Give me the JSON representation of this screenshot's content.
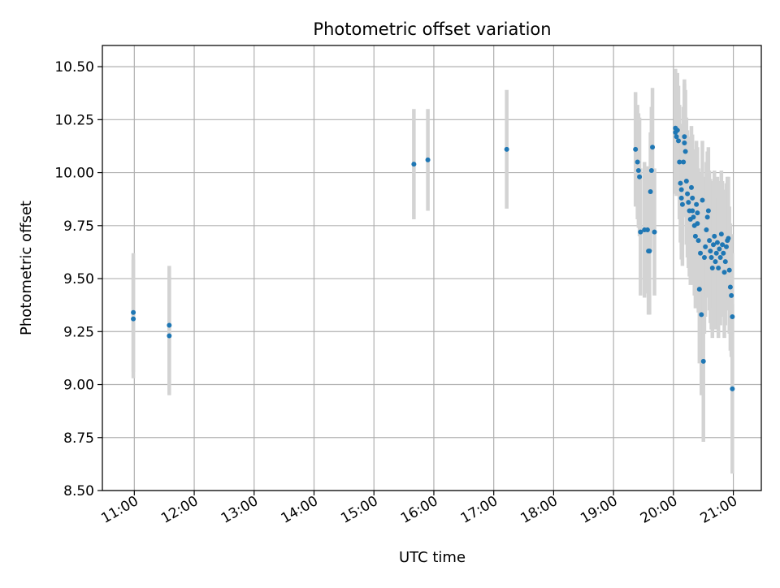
{
  "chart_data": {
    "type": "scatter",
    "title": "Photometric offset variation",
    "xlabel": "UTC time",
    "ylabel": "Photometric offset",
    "x_tick_labels": [
      "11:00",
      "12:00",
      "13:00",
      "14:00",
      "15:00",
      "16:00",
      "17:00",
      "18:00",
      "19:00",
      "20:00",
      "21:00"
    ],
    "y_tick_labels": [
      "8.50",
      "8.75",
      "9.00",
      "9.25",
      "9.50",
      "9.75",
      "10.00",
      "10.25",
      "10.50"
    ],
    "xlim": [
      "10:28",
      "21:28"
    ],
    "ylim": [
      8.5,
      10.6
    ],
    "grid": true,
    "colors": {
      "points": "#1f77b4",
      "errorbars": "#d3d3d3",
      "grid": "#b0b0b0"
    },
    "series": [
      {
        "x": [
          "10:59",
          "10:59",
          "11:35",
          "11:35",
          "15:40",
          "15:54",
          "17:13",
          "19:22",
          "19:24",
          "19:25",
          "19:26",
          "19:27",
          "19:31",
          "19:34",
          "19:35",
          "19:36",
          "19:37",
          "19:38",
          "19:39",
          "19:41",
          "20:02",
          "20:02",
          "20:03",
          "20:04",
          "20:05",
          "20:06",
          "20:07",
          "20:08",
          "20:08",
          "20:09",
          "20:10",
          "20:11",
          "20:11",
          "20:12",
          "20:13",
          "20:14",
          "20:15",
          "20:16",
          "20:17",
          "20:18",
          "20:19",
          "20:19",
          "20:20",
          "20:21",
          "20:22",
          "20:23",
          "20:24",
          "20:24",
          "20:25",
          "20:26",
          "20:27",
          "20:28",
          "20:29",
          "20:30",
          "20:31",
          "20:32",
          "20:33",
          "20:34",
          "20:35",
          "20:36",
          "20:37",
          "20:38",
          "20:39",
          "20:40",
          "20:41",
          "20:42",
          "20:43",
          "20:44",
          "20:45",
          "20:46",
          "20:47",
          "20:48",
          "20:49",
          "20:50",
          "20:51",
          "20:52",
          "20:53",
          "20:54",
          "20:55",
          "20:56",
          "20:57",
          "20:58",
          "20:59",
          "20:59"
        ],
        "y": [
          9.34,
          9.31,
          9.28,
          9.23,
          10.04,
          10.06,
          10.11,
          10.11,
          10.05,
          10.01,
          9.98,
          9.72,
          9.73,
          9.73,
          9.63,
          9.63,
          9.91,
          10.01,
          10.12,
          9.72,
          10.21,
          10.19,
          10.17,
          10.2,
          10.15,
          10.05,
          9.95,
          9.92,
          9.88,
          9.85,
          10.05,
          10.17,
          10.14,
          10.1,
          9.96,
          9.9,
          9.86,
          9.82,
          9.78,
          9.93,
          9.88,
          9.82,
          9.79,
          9.75,
          9.7,
          9.85,
          9.81,
          9.76,
          9.68,
          9.45,
          9.62,
          9.33,
          9.87,
          9.11,
          9.6,
          9.65,
          9.73,
          9.79,
          9.82,
          9.68,
          9.63,
          9.6,
          9.55,
          9.66,
          9.7,
          9.58,
          9.62,
          9.67,
          9.55,
          9.64,
          9.6,
          9.71,
          9.66,
          9.62,
          9.53,
          9.58,
          9.65,
          9.68,
          9.69,
          9.54,
          9.46,
          9.42,
          9.32,
          8.98
        ],
        "yerr": [
          0.28,
          0.28,
          0.28,
          0.28,
          0.26,
          0.24,
          0.28,
          0.27,
          0.27,
          0.27,
          0.28,
          0.3,
          0.32,
          0.3,
          0.3,
          0.3,
          0.28,
          0.3,
          0.28,
          0.3,
          0.28,
          0.29,
          0.28,
          0.27,
          0.26,
          0.27,
          0.28,
          0.28,
          0.29,
          0.29,
          0.26,
          0.27,
          0.28,
          0.29,
          0.3,
          0.3,
          0.31,
          0.31,
          0.31,
          0.29,
          0.3,
          0.31,
          0.32,
          0.33,
          0.34,
          0.3,
          0.31,
          0.31,
          0.34,
          0.35,
          0.38,
          0.38,
          0.28,
          0.38,
          0.36,
          0.33,
          0.32,
          0.31,
          0.3,
          0.33,
          0.34,
          0.34,
          0.33,
          0.3,
          0.31,
          0.32,
          0.32,
          0.31,
          0.33,
          0.32,
          0.32,
          0.3,
          0.3,
          0.3,
          0.31,
          0.3,
          0.3,
          0.3,
          0.29,
          0.3,
          0.3,
          0.29,
          0.3,
          0.4
        ]
      }
    ]
  }
}
